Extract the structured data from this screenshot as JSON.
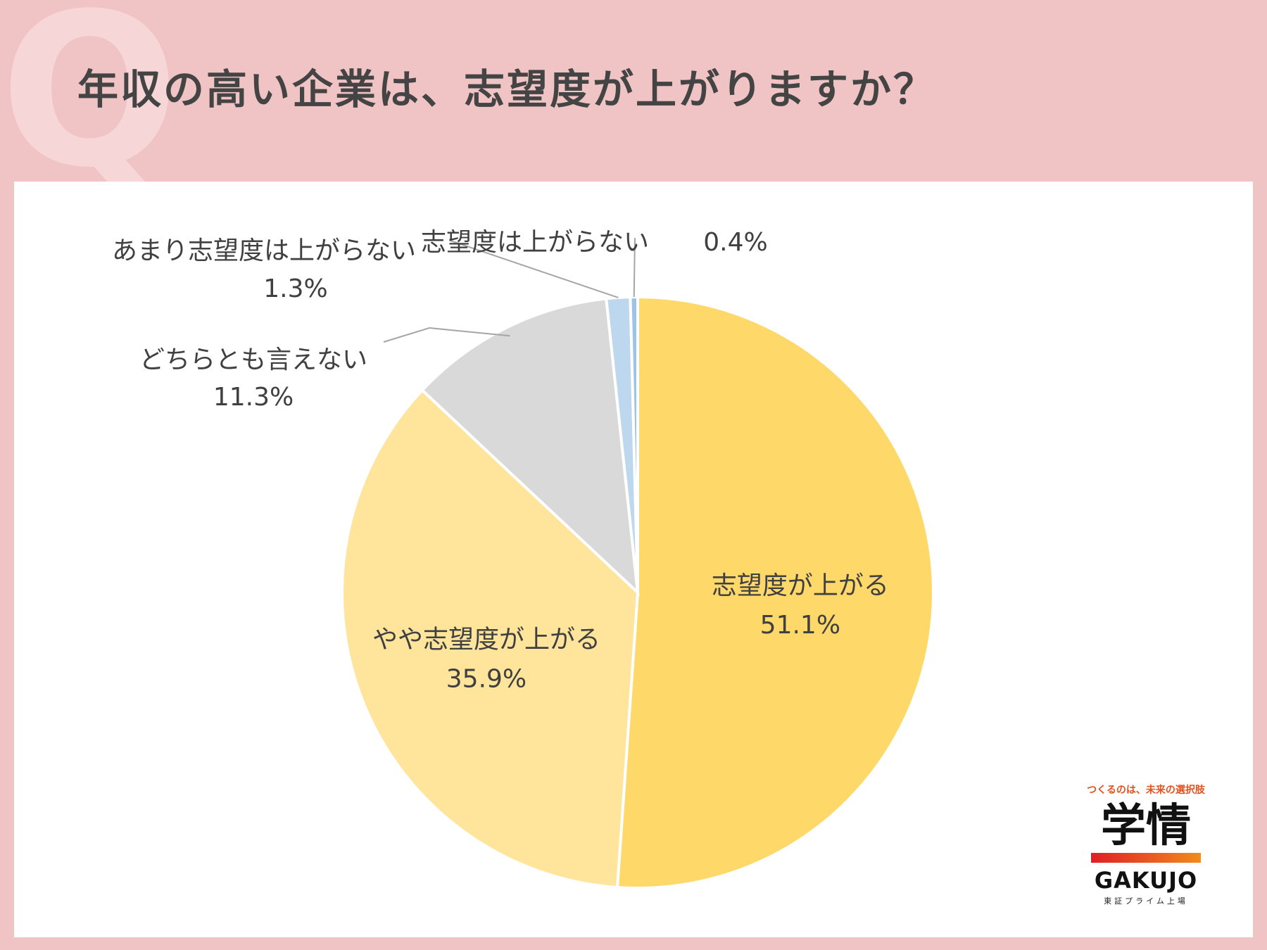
{
  "page": {
    "q_mark": "Q",
    "title": "年収の高い企業は、志望度が上がりますか？"
  },
  "chart_data": {
    "type": "pie",
    "title": "",
    "start": "12 o'clock",
    "direction": "clockwise",
    "slices": [
      {
        "label": "志望度が上がる",
        "value": 51.1,
        "value_label": "51.1%",
        "color": "#ffd86a",
        "label_position": "inside"
      },
      {
        "label": "やや志望度が上がる",
        "value": 35.9,
        "value_label": "35.9%",
        "color": "#ffe49b",
        "label_position": "inside"
      },
      {
        "label": "どちらとも言えない",
        "value": 11.3,
        "value_label": "11.3%",
        "color": "#d9d9d9",
        "label_position": "outside-left"
      },
      {
        "label": "あまり志望度は上がらない",
        "value": 1.3,
        "value_label": "1.3%",
        "color": "#bdd7ee",
        "label_position": "outside-top-left"
      },
      {
        "label": "志望度は上がらない",
        "value": 0.4,
        "value_label": "0.4%",
        "color": "#9dc3e6",
        "label_position": "outside-top"
      }
    ]
  },
  "logo": {
    "tagline": "つくるのは、未来の選択肢",
    "name": "学情",
    "name_en": "GAKUJO",
    "sub": "東証プライム上場"
  }
}
